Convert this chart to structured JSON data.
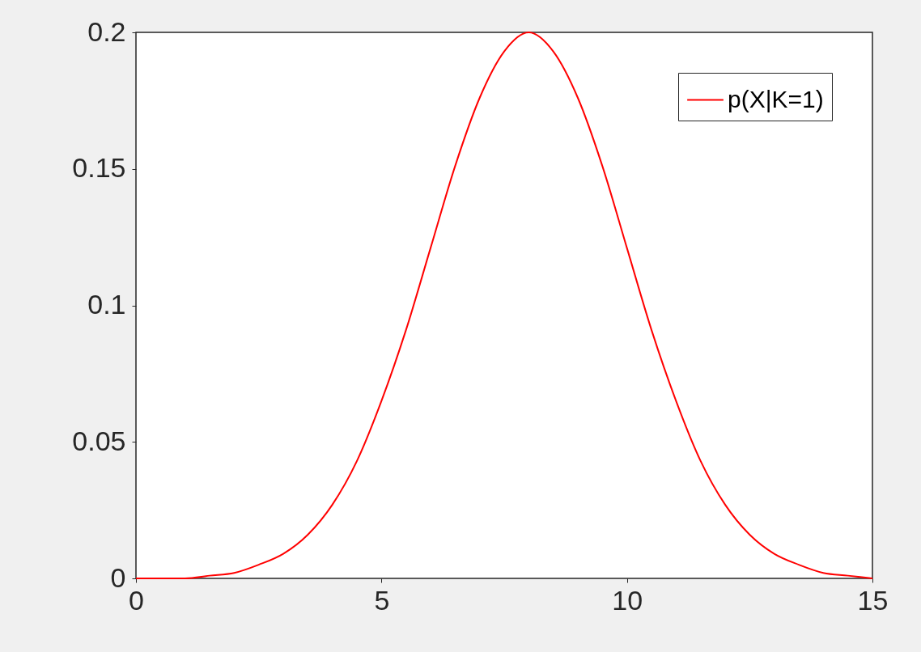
{
  "chart_data": {
    "type": "line",
    "x": [
      0,
      0.5,
      1,
      1.5,
      2,
      2.5,
      3,
      3.5,
      4,
      4.5,
      5,
      5.5,
      6,
      6.5,
      7,
      7.5,
      8,
      8.5,
      9,
      9.5,
      10,
      10.5,
      11,
      11.5,
      12,
      12.5,
      13,
      13.5,
      14,
      14.5,
      15
    ],
    "series": [
      {
        "name": "p(X|K=1)",
        "color": "#ff0000",
        "values": [
          0,
          0,
          0,
          0.001,
          0.002,
          0.005,
          0.009,
          0.016,
          0.027,
          0.043,
          0.065,
          0.091,
          0.121,
          0.151,
          0.176,
          0.193,
          0.2,
          0.193,
          0.176,
          0.151,
          0.121,
          0.091,
          0.065,
          0.043,
          0.027,
          0.016,
          0.009,
          0.005,
          0.002,
          0.001,
          0
        ]
      }
    ],
    "xlim": [
      0,
      15
    ],
    "xticks": [
      0,
      5,
      10,
      15
    ],
    "ylim": [
      0,
      0.2
    ],
    "yticks": [
      0,
      0.05,
      0.1,
      0.15,
      0.2
    ],
    "legend": "top right",
    "marker": "none"
  }
}
